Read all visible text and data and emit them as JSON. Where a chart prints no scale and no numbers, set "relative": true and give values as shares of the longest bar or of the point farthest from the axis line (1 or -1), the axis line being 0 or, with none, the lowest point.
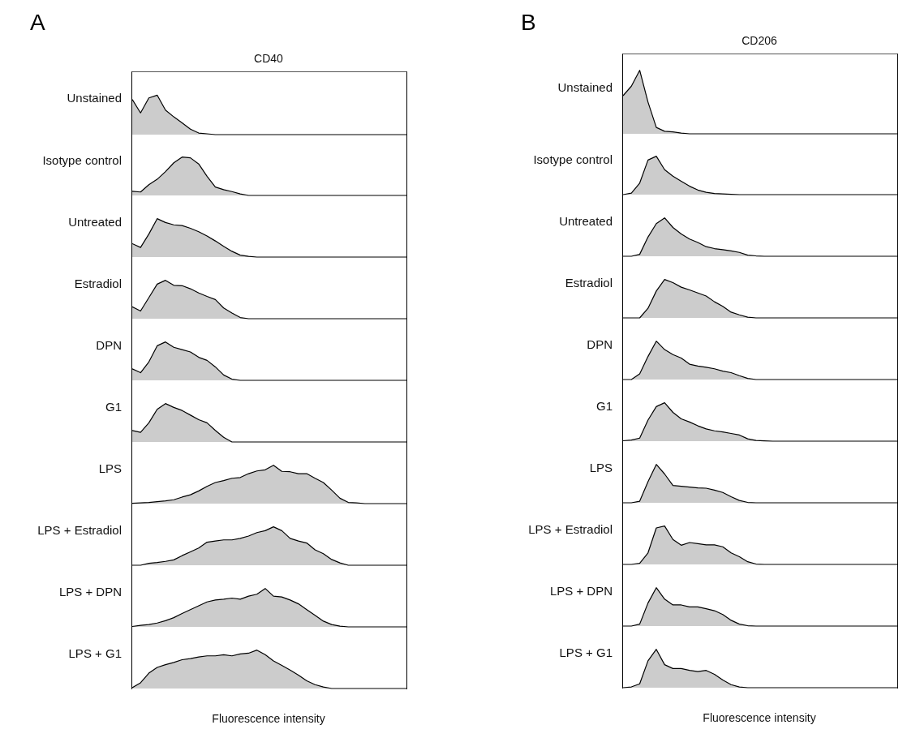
{
  "chart_data": [
    {
      "type": "area",
      "title": "CD40",
      "annotations": [
        "A"
      ],
      "ylabel": "Unstained",
      "relative": true,
      "color": "#cccccc",
      "categories": [
        null,
        null,
        null,
        null,
        null,
        null,
        null,
        null,
        null,
        null,
        null,
        null,
        null,
        null,
        null,
        null,
        null,
        null,
        null,
        null,
        null,
        null,
        null,
        null,
        null,
        null,
        null,
        null,
        null,
        null,
        null,
        null,
        null,
        null
      ],
      "values": [
        0.89,
        0.55,
        0.93,
        1.0,
        0.62,
        0.45,
        0.3,
        0.14,
        0.04,
        0.02,
        0,
        0,
        0,
        0,
        0,
        0,
        0,
        0,
        0,
        0,
        0,
        0,
        0,
        0,
        0,
        0,
        0,
        0,
        0,
        0,
        0,
        0,
        0,
        0
      ]
    },
    {
      "type": "area",
      "ylabel": "Isotype control",
      "relative": true,
      "color": "#cccccc",
      "categories": [
        null,
        null,
        null,
        null,
        null,
        null,
        null,
        null,
        null,
        null,
        null,
        null,
        null,
        null,
        null,
        null,
        null,
        null,
        null,
        null,
        null,
        null,
        null,
        null,
        null,
        null,
        null,
        null,
        null,
        null,
        null,
        null,
        null,
        null
      ],
      "values": [
        0.11,
        0.09,
        0.28,
        0.42,
        0.62,
        0.85,
        1.0,
        0.98,
        0.82,
        0.5,
        0.22,
        0.15,
        0.1,
        0.04,
        0,
        0,
        0,
        0,
        0,
        0,
        0,
        0,
        0,
        0,
        0,
        0,
        0,
        0,
        0,
        0,
        0,
        0,
        0,
        0
      ]
    },
    {
      "type": "area",
      "ylabel": "Untreated",
      "relative": true,
      "color": "#cccccc",
      "categories": [
        null,
        null,
        null,
        null,
        null,
        null,
        null,
        null,
        null,
        null,
        null,
        null,
        null,
        null,
        null,
        null,
        null,
        null,
        null,
        null,
        null,
        null,
        null,
        null,
        null,
        null,
        null,
        null,
        null,
        null,
        null,
        null,
        null,
        null
      ],
      "values": [
        0.35,
        0.25,
        0.6,
        1.0,
        0.9,
        0.84,
        0.82,
        0.75,
        0.66,
        0.55,
        0.42,
        0.28,
        0.15,
        0.05,
        0.02,
        0,
        0,
        0,
        0,
        0,
        0,
        0,
        0,
        0,
        0,
        0,
        0,
        0,
        0,
        0,
        0,
        0,
        0,
        0
      ]
    },
    {
      "type": "area",
      "ylabel": "Estradiol",
      "relative": true,
      "color": "#cccccc",
      "categories": [
        null,
        null,
        null,
        null,
        null,
        null,
        null,
        null,
        null,
        null,
        null,
        null,
        null,
        null,
        null,
        null,
        null,
        null,
        null,
        null,
        null,
        null,
        null,
        null,
        null,
        null,
        null,
        null,
        null,
        null,
        null,
        null,
        null,
        null
      ],
      "values": [
        0.31,
        0.2,
        0.55,
        0.9,
        1.0,
        0.87,
        0.86,
        0.78,
        0.67,
        0.58,
        0.5,
        0.28,
        0.15,
        0.03,
        0,
        0,
        0,
        0,
        0,
        0,
        0,
        0,
        0,
        0,
        0,
        0,
        0,
        0,
        0,
        0,
        0,
        0,
        0,
        0
      ]
    },
    {
      "type": "area",
      "ylabel": "DPN",
      "relative": true,
      "color": "#cccccc",
      "categories": [
        null,
        null,
        null,
        null,
        null,
        null,
        null,
        null,
        null,
        null,
        null,
        null,
        null,
        null,
        null,
        null,
        null,
        null,
        null,
        null,
        null,
        null,
        null,
        null,
        null,
        null,
        null,
        null,
        null,
        null,
        null,
        null,
        null,
        null
      ],
      "values": [
        0.3,
        0.2,
        0.48,
        0.9,
        1.0,
        0.86,
        0.8,
        0.74,
        0.6,
        0.52,
        0.35,
        0.14,
        0.03,
        0,
        0,
        0,
        0,
        0,
        0,
        0,
        0,
        0,
        0,
        0,
        0,
        0,
        0,
        0,
        0,
        0,
        0,
        0,
        0,
        0
      ]
    },
    {
      "type": "area",
      "ylabel": "G1",
      "relative": true,
      "color": "#cccccc",
      "categories": [
        null,
        null,
        null,
        null,
        null,
        null,
        null,
        null,
        null,
        null,
        null,
        null,
        null,
        null,
        null,
        null,
        null,
        null,
        null,
        null,
        null,
        null,
        null,
        null,
        null,
        null,
        null,
        null,
        null,
        null,
        null,
        null,
        null,
        null
      ],
      "values": [
        0.3,
        0.25,
        0.5,
        0.85,
        1.0,
        0.9,
        0.82,
        0.7,
        0.58,
        0.5,
        0.3,
        0.12,
        0,
        0,
        0,
        0,
        0,
        0,
        0,
        0,
        0,
        0,
        0,
        0,
        0,
        0,
        0,
        0,
        0,
        0,
        0,
        0,
        0,
        0
      ]
    },
    {
      "type": "area",
      "ylabel": "LPS",
      "relative": true,
      "color": "#cccccc",
      "categories": [
        null,
        null,
        null,
        null,
        null,
        null,
        null,
        null,
        null,
        null,
        null,
        null,
        null,
        null,
        null,
        null,
        null,
        null,
        null,
        null,
        null,
        null,
        null,
        null,
        null,
        null,
        null,
        null,
        null,
        null,
        null,
        null,
        null,
        null
      ],
      "values": [
        0.01,
        0.02,
        0.03,
        0.05,
        0.07,
        0.1,
        0.17,
        0.23,
        0.33,
        0.45,
        0.55,
        0.6,
        0.66,
        0.68,
        0.78,
        0.85,
        0.88,
        1.0,
        0.84,
        0.83,
        0.78,
        0.78,
        0.66,
        0.55,
        0.35,
        0.14,
        0.03,
        0.02,
        0,
        0,
        0,
        0,
        0,
        0
      ]
    },
    {
      "type": "area",
      "ylabel": "LPS + Estradiol",
      "relative": true,
      "color": "#cccccc",
      "categories": [
        null,
        null,
        null,
        null,
        null,
        null,
        null,
        null,
        null,
        null,
        null,
        null,
        null,
        null,
        null,
        null,
        null,
        null,
        null,
        null,
        null,
        null,
        null,
        null,
        null,
        null,
        null,
        null,
        null,
        null,
        null,
        null,
        null,
        null
      ],
      "values": [
        0,
        0,
        0.05,
        0.07,
        0.1,
        0.14,
        0.25,
        0.35,
        0.45,
        0.6,
        0.63,
        0.66,
        0.66,
        0.7,
        0.76,
        0.85,
        0.9,
        1.0,
        0.9,
        0.7,
        0.63,
        0.58,
        0.4,
        0.3,
        0.15,
        0.06,
        0,
        0,
        0,
        0,
        0,
        0,
        0,
        0
      ]
    },
    {
      "type": "area",
      "ylabel": "LPS + DPN",
      "relative": true,
      "color": "#cccccc",
      "categories": [
        null,
        null,
        null,
        null,
        null,
        null,
        null,
        null,
        null,
        null,
        null,
        null,
        null,
        null,
        null,
        null,
        null,
        null,
        null,
        null,
        null,
        null,
        null,
        null,
        null,
        null,
        null,
        null,
        null,
        null,
        null,
        null,
        null,
        null
      ],
      "values": [
        0.01,
        0.04,
        0.06,
        0.1,
        0.16,
        0.24,
        0.35,
        0.45,
        0.55,
        0.65,
        0.7,
        0.72,
        0.75,
        0.72,
        0.8,
        0.85,
        1.0,
        0.8,
        0.78,
        0.7,
        0.6,
        0.45,
        0.3,
        0.15,
        0.06,
        0.02,
        0,
        0,
        0,
        0,
        0,
        0,
        0,
        0
      ]
    },
    {
      "type": "area",
      "ylabel": "LPS + G1",
      "xlabel": "Fluorescence intensity",
      "relative": true,
      "color": "#cccccc",
      "categories": [
        null,
        null,
        null,
        null,
        null,
        null,
        null,
        null,
        null,
        null,
        null,
        null,
        null,
        null,
        null,
        null,
        null,
        null,
        null,
        null,
        null,
        null,
        null,
        null,
        null,
        null,
        null,
        null,
        null,
        null,
        null,
        null,
        null,
        null
      ],
      "values": [
        0.02,
        0.15,
        0.4,
        0.55,
        0.62,
        0.68,
        0.75,
        0.78,
        0.82,
        0.85,
        0.85,
        0.88,
        0.85,
        0.9,
        0.92,
        1.0,
        0.88,
        0.72,
        0.6,
        0.48,
        0.35,
        0.2,
        0.1,
        0.04,
        0,
        0,
        0,
        0,
        0,
        0,
        0,
        0,
        0,
        0
      ]
    },
    {
      "type": "area",
      "title": "CD206",
      "annotations": [
        "B"
      ],
      "ylabel": "Unstained",
      "relative": true,
      "color": "#cccccc",
      "categories": [
        null,
        null,
        null,
        null,
        null,
        null,
        null,
        null,
        null,
        null,
        null,
        null,
        null,
        null,
        null,
        null,
        null,
        null,
        null,
        null,
        null,
        null,
        null,
        null,
        null,
        null,
        null,
        null,
        null,
        null,
        null,
        null,
        null,
        null
      ],
      "values": [
        0.6,
        0.75,
        1.0,
        0.5,
        0.1,
        0.04,
        0.03,
        0.01,
        0,
        0,
        0,
        0,
        0,
        0,
        0,
        0,
        0,
        0,
        0,
        0,
        0,
        0,
        0,
        0,
        0,
        0,
        0,
        0,
        0,
        0,
        0,
        0,
        0,
        0
      ]
    },
    {
      "type": "area",
      "ylabel": "Isotype control",
      "relative": true,
      "color": "#cccccc",
      "categories": [
        null,
        null,
        null,
        null,
        null,
        null,
        null,
        null,
        null,
        null,
        null,
        null,
        null,
        null,
        null,
        null,
        null,
        null,
        null,
        null,
        null,
        null,
        null,
        null,
        null,
        null,
        null,
        null,
        null,
        null,
        null,
        null,
        null,
        null
      ],
      "values": [
        0,
        0.04,
        0.3,
        0.9,
        1.0,
        0.65,
        0.48,
        0.35,
        0.22,
        0.12,
        0.06,
        0.03,
        0.02,
        0.01,
        0,
        0,
        0,
        0,
        0,
        0,
        0,
        0,
        0,
        0,
        0,
        0,
        0,
        0,
        0,
        0,
        0,
        0,
        0,
        0
      ]
    },
    {
      "type": "area",
      "ylabel": "Untreated",
      "relative": true,
      "color": "#cccccc",
      "categories": [
        null,
        null,
        null,
        null,
        null,
        null,
        null,
        null,
        null,
        null,
        null,
        null,
        null,
        null,
        null,
        null,
        null,
        null,
        null,
        null,
        null,
        null,
        null,
        null,
        null,
        null,
        null,
        null,
        null,
        null,
        null,
        null,
        null,
        null
      ],
      "values": [
        0,
        0,
        0.05,
        0.5,
        0.85,
        1.0,
        0.75,
        0.58,
        0.45,
        0.36,
        0.25,
        0.2,
        0.17,
        0.14,
        0.1,
        0.03,
        0.01,
        0,
        0,
        0,
        0,
        0,
        0,
        0,
        0,
        0,
        0,
        0,
        0,
        0,
        0,
        0,
        0,
        0
      ]
    },
    {
      "type": "area",
      "ylabel": "Estradiol",
      "relative": true,
      "color": "#cccccc",
      "categories": [
        null,
        null,
        null,
        null,
        null,
        null,
        null,
        null,
        null,
        null,
        null,
        null,
        null,
        null,
        null,
        null,
        null,
        null,
        null,
        null,
        null,
        null,
        null,
        null,
        null,
        null,
        null,
        null,
        null,
        null,
        null,
        null,
        null,
        null
      ],
      "values": [
        0,
        0,
        0,
        0.25,
        0.7,
        1.0,
        0.92,
        0.8,
        0.73,
        0.65,
        0.57,
        0.42,
        0.3,
        0.15,
        0.08,
        0.02,
        0,
        0,
        0,
        0,
        0,
        0,
        0,
        0,
        0,
        0,
        0,
        0,
        0,
        0,
        0,
        0,
        0,
        0
      ]
    },
    {
      "type": "area",
      "ylabel": "DPN",
      "relative": true,
      "color": "#cccccc",
      "categories": [
        null,
        null,
        null,
        null,
        null,
        null,
        null,
        null,
        null,
        null,
        null,
        null,
        null,
        null,
        null,
        null,
        null,
        null,
        null,
        null,
        null,
        null,
        null,
        null,
        null,
        null,
        null,
        null,
        null,
        null,
        null,
        null,
        null,
        null
      ],
      "values": [
        0,
        0,
        0.15,
        0.6,
        1.0,
        0.78,
        0.65,
        0.56,
        0.4,
        0.35,
        0.32,
        0.28,
        0.22,
        0.18,
        0.1,
        0.03,
        0,
        0,
        0,
        0,
        0,
        0,
        0,
        0,
        0,
        0,
        0,
        0,
        0,
        0,
        0,
        0,
        0,
        0
      ]
    },
    {
      "type": "area",
      "ylabel": "G1",
      "relative": true,
      "color": "#cccccc",
      "categories": [
        null,
        null,
        null,
        null,
        null,
        null,
        null,
        null,
        null,
        null,
        null,
        null,
        null,
        null,
        null,
        null,
        null,
        null,
        null,
        null,
        null,
        null,
        null,
        null,
        null,
        null,
        null,
        null,
        null,
        null,
        null,
        null,
        null,
        null
      ],
      "values": [
        0.01,
        0.03,
        0.08,
        0.55,
        0.9,
        1.0,
        0.75,
        0.58,
        0.5,
        0.4,
        0.32,
        0.27,
        0.24,
        0.2,
        0.16,
        0.06,
        0.02,
        0.01,
        0,
        0,
        0,
        0,
        0,
        0,
        0,
        0,
        0,
        0,
        0,
        0,
        0,
        0,
        0,
        0
      ]
    },
    {
      "type": "area",
      "ylabel": "LPS",
      "relative": true,
      "color": "#cccccc",
      "categories": [
        null,
        null,
        null,
        null,
        null,
        null,
        null,
        null,
        null,
        null,
        null,
        null,
        null,
        null,
        null,
        null,
        null,
        null,
        null,
        null,
        null,
        null,
        null,
        null,
        null,
        null,
        null,
        null,
        null,
        null,
        null,
        null,
        null,
        null
      ],
      "values": [
        0,
        0,
        0.04,
        0.55,
        1.0,
        0.75,
        0.45,
        0.43,
        0.41,
        0.39,
        0.38,
        0.33,
        0.27,
        0.16,
        0.06,
        0.01,
        0,
        0,
        0,
        0,
        0,
        0,
        0,
        0,
        0,
        0,
        0,
        0,
        0,
        0,
        0,
        0,
        0,
        0
      ]
    },
    {
      "type": "area",
      "ylabel": "LPS + Estradiol",
      "relative": true,
      "color": "#cccccc",
      "categories": [
        null,
        null,
        null,
        null,
        null,
        null,
        null,
        null,
        null,
        null,
        null,
        null,
        null,
        null,
        null,
        null,
        null,
        null,
        null,
        null,
        null,
        null,
        null,
        null,
        null,
        null,
        null,
        null,
        null,
        null,
        null,
        null,
        null,
        null
      ],
      "values": [
        0,
        0,
        0.03,
        0.3,
        0.95,
        1.0,
        0.65,
        0.5,
        0.57,
        0.54,
        0.51,
        0.51,
        0.46,
        0.3,
        0.2,
        0.07,
        0.01,
        0,
        0,
        0,
        0,
        0,
        0,
        0,
        0,
        0,
        0,
        0,
        0,
        0,
        0,
        0,
        0,
        0
      ]
    },
    {
      "type": "area",
      "ylabel": "LPS + DPN",
      "relative": true,
      "color": "#cccccc",
      "categories": [
        null,
        null,
        null,
        null,
        null,
        null,
        null,
        null,
        null,
        null,
        null,
        null,
        null,
        null,
        null,
        null,
        null,
        null,
        null,
        null,
        null,
        null,
        null,
        null,
        null,
        null,
        null,
        null,
        null,
        null,
        null,
        null,
        null,
        null
      ],
      "values": [
        0,
        0,
        0.05,
        0.6,
        1.0,
        0.7,
        0.55,
        0.55,
        0.5,
        0.5,
        0.45,
        0.4,
        0.3,
        0.15,
        0.05,
        0.01,
        0,
        0,
        0,
        0,
        0,
        0,
        0,
        0,
        0,
        0,
        0,
        0,
        0,
        0,
        0,
        0,
        0,
        0
      ]
    },
    {
      "type": "area",
      "ylabel": "LPS + G1",
      "xlabel": "Fluorescence intensity",
      "relative": true,
      "color": "#cccccc",
      "categories": [
        null,
        null,
        null,
        null,
        null,
        null,
        null,
        null,
        null,
        null,
        null,
        null,
        null,
        null,
        null,
        null,
        null,
        null,
        null,
        null,
        null,
        null,
        null,
        null,
        null,
        null,
        null,
        null,
        null,
        null,
        null,
        null,
        null,
        null
      ],
      "values": [
        0,
        0.02,
        0.1,
        0.7,
        1.0,
        0.6,
        0.5,
        0.5,
        0.45,
        0.42,
        0.45,
        0.35,
        0.2,
        0.08,
        0.02,
        0,
        0,
        0,
        0,
        0,
        0,
        0,
        0,
        0,
        0,
        0,
        0,
        0,
        0,
        0,
        0,
        0,
        0,
        0
      ]
    }
  ]
}
